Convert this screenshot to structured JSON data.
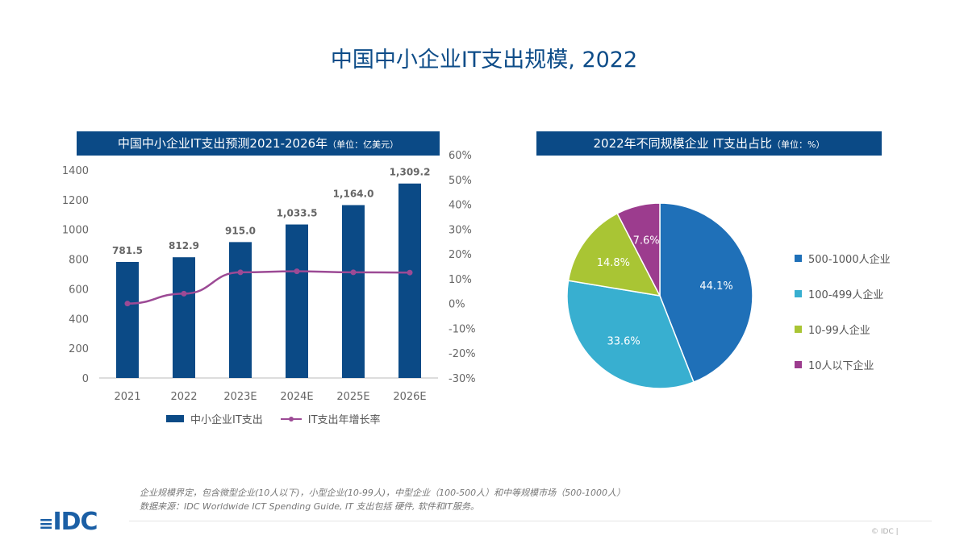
{
  "title": "中国中小企业IT支出规模, 2022",
  "chart_data": [
    {
      "type": "bar+line",
      "title": "中国中小企业IT支出预测2021-2026年",
      "unit": "（单位：亿美元）",
      "categories": [
        "2021",
        "2022",
        "2023E",
        "2024E",
        "2025E",
        "2026E"
      ],
      "series": [
        {
          "name": "中小企业IT支出",
          "type": "bar",
          "values": [
            781.5,
            812.9,
            915.0,
            1033.5,
            1164.0,
            1309.2
          ],
          "labels": [
            "781.5",
            "812.9",
            "915.0",
            "1,033.5",
            "1,164.0",
            "1,309.2"
          ],
          "color": "#0b4a86"
        },
        {
          "name": "IT支出年增长率",
          "type": "line",
          "axis": "right",
          "values": [
            0,
            4.0,
            12.6,
            13.0,
            12.6,
            12.5
          ],
          "color": "#9c4a95"
        }
      ],
      "ylim": [
        0,
        1400
      ],
      "yticks": [
        "0",
        "200",
        "400",
        "600",
        "800",
        "1000",
        "1200",
        "1400"
      ],
      "y2lim": [
        -30,
        60
      ],
      "y2ticks": [
        "-30%",
        "-20%",
        "-10%",
        "0%",
        "10%",
        "20%",
        "30%",
        "40%",
        "50%",
        "60%"
      ],
      "legend": "bottom"
    },
    {
      "type": "pie",
      "title": "2022年不同规模企业 IT支出占比",
      "unit": "（单位：%）",
      "slices": [
        {
          "name": "500-1000人企业",
          "value": 44.1,
          "label": "44.1%",
          "color": "#1f70b8"
        },
        {
          "name": "100-499人企业",
          "value": 33.6,
          "label": "33.6%",
          "color": "#38afd0"
        },
        {
          "name": "10-99人企业",
          "value": 14.8,
          "label": "14.8%",
          "color": "#a9c534"
        },
        {
          "name": "10人以下企业",
          "value": 7.6,
          "label": "7.6%",
          "color": "#9c3c8e"
        }
      ],
      "legend": "right"
    }
  ],
  "notes": [
    "企业规模界定，包含微型企业(10人以下)，小型企业(10-99人)，中型企业（100-500人）和中等规模市场（500-1000人）",
    "数据来源：IDC Worldwide ICT Spending Guide, IT 支出包括 硬件, 软件和IT服务。"
  ],
  "logo": "IDC",
  "copyright": "© IDC |"
}
